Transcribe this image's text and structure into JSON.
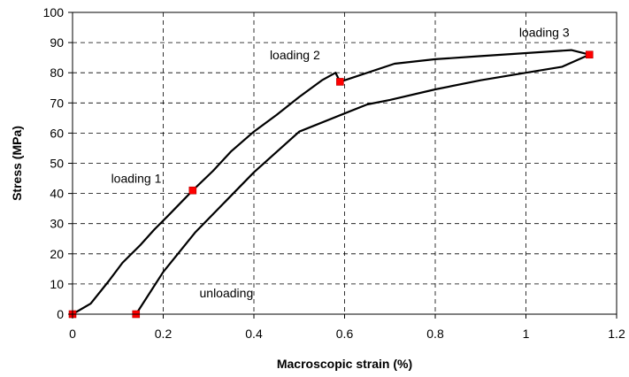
{
  "chart_data": {
    "type": "line",
    "title": "",
    "xlabel": "Macroscopic strain (%)",
    "ylabel": "Stress (MPa)",
    "xlim": [
      0,
      1.2
    ],
    "ylim": [
      0,
      100
    ],
    "xticks": [
      0,
      0.2,
      0.4,
      0.6,
      0.8,
      1,
      1.2
    ],
    "xtick_labels": [
      "0",
      "0.2",
      "0.4",
      "0.6",
      "0.8",
      "1",
      "1.2"
    ],
    "yticks": [
      0,
      10,
      20,
      30,
      40,
      50,
      60,
      70,
      80,
      90,
      100
    ],
    "ytick_labels": [
      "0",
      "10",
      "20",
      "30",
      "40",
      "50",
      "60",
      "70",
      "80",
      "90",
      "100"
    ],
    "grid": true,
    "line_color": "#000000",
    "marker_color": "#ff0000",
    "series": [
      {
        "x": [
          0,
          0.04,
          0.08,
          0.11,
          0.15,
          0.18,
          0.21,
          0.265,
          0.31,
          0.35,
          0.4,
          0.45,
          0.5,
          0.55,
          0.58,
          0.59
        ],
        "y": [
          0,
          3.5,
          11,
          17,
          23,
          28,
          32.5,
          41,
          47.5,
          54,
          60.5,
          66,
          72,
          77.5,
          80,
          77
        ],
        "role": "loading 1-2"
      },
      {
        "x": [
          0.59,
          0.71,
          0.8,
          0.9,
          1.0,
          1.1,
          1.14
        ],
        "y": [
          77,
          83,
          84.5,
          85.5,
          86.5,
          87.5,
          86
        ],
        "role": "loading 3"
      },
      {
        "x": [
          1.14,
          1.08,
          1.0,
          0.9,
          0.8,
          0.7,
          0.65,
          0.6,
          0.5,
          0.4,
          0.27,
          0.2,
          0.14
        ],
        "y": [
          86,
          82,
          80,
          77.5,
          74.5,
          71,
          69.5,
          66.5,
          60.5,
          47,
          27,
          14,
          0
        ],
        "role": "unloading"
      }
    ],
    "markers": {
      "x": [
        0,
        0.14,
        0.265,
        0.59,
        1.14
      ],
      "y": [
        0,
        0,
        41,
        77,
        86
      ]
    },
    "annotations": [
      {
        "text": "loading 1",
        "x": 0.085,
        "y": 43.5
      },
      {
        "text": "loading 2",
        "x": 0.435,
        "y": 84.5
      },
      {
        "text": "loading 3",
        "x": 0.985,
        "y": 92
      },
      {
        "text": "unloading",
        "x": 0.28,
        "y": 5.5
      }
    ]
  }
}
